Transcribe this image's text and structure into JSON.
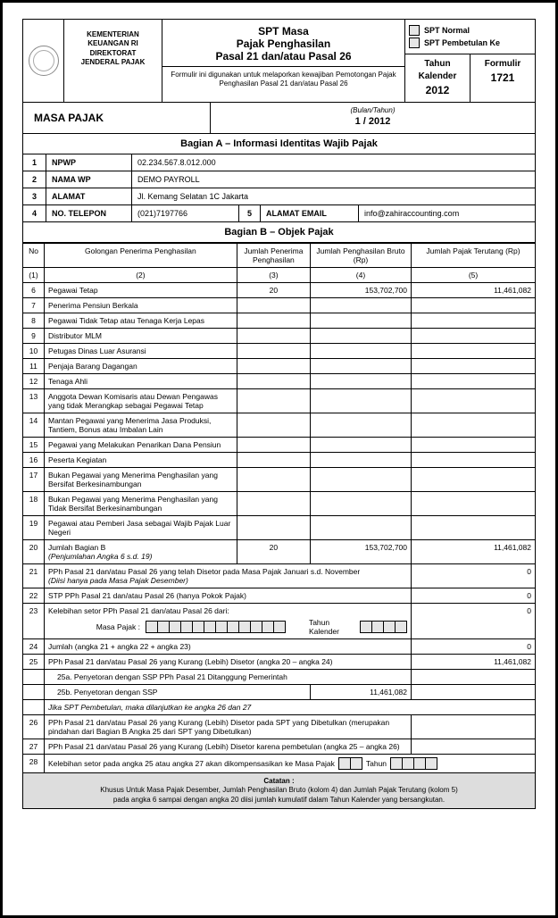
{
  "header": {
    "ministry_l1": "KEMENTERIAN",
    "ministry_l2": "KEUANGAN RI",
    "ministry_l3": "DIREKTORAT",
    "ministry_l4": "JENDERAL PAJAK",
    "title_l1": "SPT Masa",
    "title_l2": "Pajak Penghasilan",
    "title_l3": "Pasal 21 dan/atau Pasal 26",
    "desc": "Formulir ini digunakan untuk melaporkan kewajiban Pemotongan Pajak Penghasilan Pasal 21 dan/atau Pasal 26",
    "spt_normal": "SPT Normal",
    "spt_pembetulan": "SPT Pembetulan Ke",
    "tahun_label": "Tahun Kalender",
    "tahun_val": "2012",
    "formulir_label": "Formulir",
    "formulir_val": "1721"
  },
  "masa": {
    "label": "MASA PAJAK",
    "bulan_hint": "(Bulan/Tahun)",
    "value": "1   / 2012"
  },
  "bagianA": {
    "title": "Bagian  A – Informasi Identitas Wajib Pajak",
    "rows": {
      "npwp_num": "1",
      "npwp_lbl": "NPWP",
      "npwp_val": "02.234.567.8.012.000",
      "nama_num": "2",
      "nama_lbl": "NAMA WP",
      "nama_val": "DEMO PAYROLL",
      "alamat_num": "3",
      "alamat_lbl": "ALAMAT",
      "alamat_val": "Jl. Kemang Selatan 1C Jakarta",
      "tel_num": "4",
      "tel_lbl": "NO. TELEPON",
      "tel_val": "(021)7197766",
      "email_num": "5",
      "email_lbl": "ALAMAT EMAIL",
      "email_val": "info@zahiraccounting.com"
    }
  },
  "bagianB": {
    "title": "Bagian B – Objek Pajak",
    "head": {
      "no": "No",
      "golongan": "Golongan Penerima Penghasilan",
      "jumlah_penerima": "Jumlah Penerima Penghasilan",
      "bruto": "Jumlah Penghasilan Bruto (Rp)",
      "terutang": "Jumlah Pajak Terutang (Rp)",
      "c1": "(1)",
      "c2": "(2)",
      "c3": "(3)",
      "c4": "(4)",
      "c5": "(5)"
    },
    "rows": [
      {
        "n": "6",
        "d": "Pegawai Tetap",
        "p": "20",
        "b": "153,702,700",
        "t": "11,461,082"
      },
      {
        "n": "7",
        "d": "Penerima Pensiun Berkala"
      },
      {
        "n": "8",
        "d": "Pegawai Tidak Tetap atau Tenaga Kerja Lepas"
      },
      {
        "n": "9",
        "d": "Distributor MLM"
      },
      {
        "n": "10",
        "d": "Petugas Dinas Luar Asuransi"
      },
      {
        "n": "11",
        "d": "Penjaja Barang Dagangan"
      },
      {
        "n": "12",
        "d": "Tenaga Ahli"
      },
      {
        "n": "13",
        "d": "Anggota Dewan Komisaris atau Dewan Pengawas yang tidak Merangkap sebagai Pegawai Tetap"
      },
      {
        "n": "14",
        "d": "Mantan Pegawai yang Menerima Jasa Produksi, Tantiem, Bonus atau Imbalan Lain"
      },
      {
        "n": "15",
        "d": "Pegawai yang Melakukan Penarikan Dana Pensiun"
      },
      {
        "n": "16",
        "d": "Peserta Kegiatan"
      },
      {
        "n": "17",
        "d": "Bukan Pegawai yang Menerima Penghasilan yang Bersifat Berkesinambungan"
      },
      {
        "n": "18",
        "d": "Bukan Pegawai yang Menerima Penghasilan yang Tidak Bersifat Berkesinambungan"
      },
      {
        "n": "19",
        "d": "Pegawai atau Pemberi Jasa sebagai Wajib Pajak Luar Negeri"
      }
    ],
    "row20": {
      "n": "20",
      "d1": "Jumlah Bagian B",
      "d2": "(Penjumlahan Angka 6 s.d. 19)",
      "p": "20",
      "b": "153,702,700",
      "t": "11,461,082"
    },
    "row21": {
      "n": "21",
      "d1": "PPh Pasal 21 dan/atau Pasal 26 yang telah Disetor pada Masa Pajak Januari s.d. November",
      "d2": "(Diisi hanya pada Masa Pajak Desember)",
      "v": "0"
    },
    "row22": {
      "n": "22",
      "d": "STP PPh Pasal 21 dan/atau Pasal 26 (hanya Pokok Pajak)",
      "v": "0"
    },
    "row23": {
      "n": "23",
      "d": "Kelebihan setor PPh Pasal 21 dan/atau Pasal 26 dari:",
      "lbl1": "Masa Pajak :",
      "lbl2": "Tahun Kalender",
      "v": "0"
    },
    "row24": {
      "n": "24",
      "d": "Jumlah (angka 21 + angka 22 + angka 23)",
      "v": "0"
    },
    "row25": {
      "n": "25",
      "d": "PPh Pasal 21 dan/atau Pasal 26 yang Kurang (Lebih) Disetor (angka 20  –  angka 24)",
      "v": "11,461,082"
    },
    "row25a": {
      "d": "25a. Penyetoran dengan SSP PPh Pasal 21 Ditanggung Pemerintah"
    },
    "row25b": {
      "d": "25b. Penyetoran dengan SSP",
      "v": "11,461,082"
    },
    "rowJika": {
      "d": "Jika SPT Pembetulan, maka dilanjutkan ke angka 26 dan 27"
    },
    "row26": {
      "n": "26",
      "d": "PPh Pasal 21 dan/atau Pasal 26 yang Kurang (Lebih) Disetor pada SPT yang Dibetulkan (merupakan pindahan dari Bagian B Angka 25 dari SPT yang Dibetulkan)"
    },
    "row27": {
      "n": "27",
      "d": "PPh Pasal 21 dan/atau Pasal 26 yang Kurang (Lebih) Disetor karena pembetulan (angka 25  –  angka 26)"
    },
    "row28": {
      "n": "28",
      "d": "Kelebihan setor pada angka 25 atau angka 27 akan dikompensasikan ke Masa Pajak",
      "tahun": "Tahun"
    }
  },
  "note": {
    "title": "Catatan :",
    "l1": "Khusus Untuk Masa Pajak Desember, Jumlah  Penghasilan Bruto (kolom 4) dan Jumlah Pajak Terutang (kolom 5)",
    "l2": "pada angka 6 sampai dengan angka 20 diisi jumlah kumulatif dalam Tahun Kalender yang bersangkutan."
  }
}
